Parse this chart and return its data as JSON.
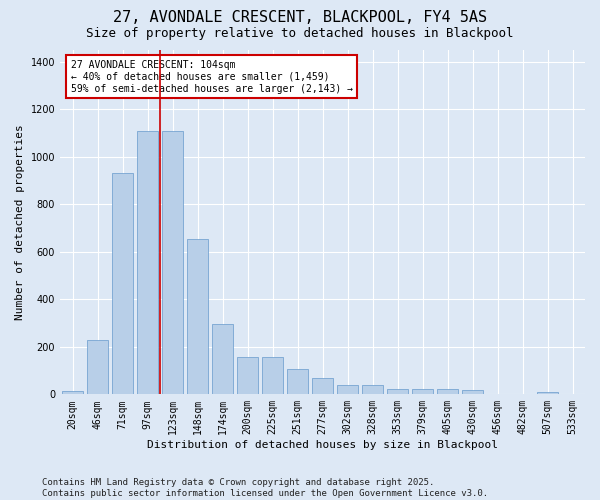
{
  "title": "27, AVONDALE CRESCENT, BLACKPOOL, FY4 5AS",
  "subtitle": "Size of property relative to detached houses in Blackpool",
  "xlabel": "Distribution of detached houses by size in Blackpool",
  "ylabel": "Number of detached properties",
  "categories": [
    "20sqm",
    "46sqm",
    "71sqm",
    "97sqm",
    "123sqm",
    "148sqm",
    "174sqm",
    "200sqm",
    "225sqm",
    "251sqm",
    "277sqm",
    "302sqm",
    "328sqm",
    "353sqm",
    "379sqm",
    "405sqm",
    "430sqm",
    "456sqm",
    "482sqm",
    "507sqm",
    "533sqm"
  ],
  "values": [
    15,
    230,
    930,
    1110,
    1110,
    655,
    295,
    158,
    158,
    105,
    68,
    38,
    38,
    22,
    22,
    22,
    18,
    0,
    0,
    10,
    0
  ],
  "bar_color": "#b8cfe8",
  "bar_edge_color": "#6699cc",
  "vline_index": 3.5,
  "vline_color": "#cc0000",
  "annotation_text": "27 AVONDALE CRESCENT: 104sqm\n← 40% of detached houses are smaller (1,459)\n59% of semi-detached houses are larger (2,143) →",
  "annotation_box_color": "#ffffff",
  "annotation_box_edge": "#cc0000",
  "ylim": [
    0,
    1450
  ],
  "background_color": "#dde8f5",
  "grid_color": "#ffffff",
  "footer": "Contains HM Land Registry data © Crown copyright and database right 2025.\nContains public sector information licensed under the Open Government Licence v3.0.",
  "title_fontsize": 11,
  "subtitle_fontsize": 9,
  "xlabel_fontsize": 8,
  "ylabel_fontsize": 8,
  "tick_fontsize": 7,
  "footer_fontsize": 6.5,
  "annotation_fontsize": 7
}
